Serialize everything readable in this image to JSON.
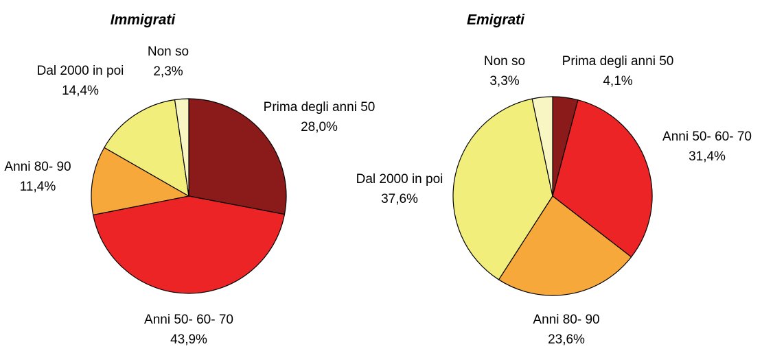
{
  "chart_data": [
    {
      "type": "pie",
      "title": "Immigrati",
      "categories": [
        "Prima degli anni 50",
        "Anni 50- 60- 70",
        "Anni 80- 90",
        "Dal 2000 in poi",
        "Non so"
      ],
      "values": [
        28.0,
        43.9,
        11.4,
        14.4,
        2.3
      ],
      "value_labels": [
        "28,0%",
        "43,9%",
        "11,4%",
        "14,4%",
        "2,3%"
      ],
      "colors": [
        "#8b1a1a",
        "#ed2426",
        "#f7a83a",
        "#f2ee7c",
        "#f8f6c2"
      ]
    },
    {
      "type": "pie",
      "title": "Emigrati",
      "categories": [
        "Prima degli anni 50",
        "Anni 50- 60- 70",
        "Anni 80- 90",
        "Dal 2000 in poi",
        "Non so"
      ],
      "values": [
        4.1,
        31.4,
        23.6,
        37.6,
        3.3
      ],
      "value_labels": [
        "4,1%",
        "31,4%",
        "23,6%",
        "37,6%",
        "3,3%"
      ],
      "colors": [
        "#8b1a1a",
        "#ed2426",
        "#f7a83a",
        "#f2ee7c",
        "#f8f6c2"
      ]
    }
  ]
}
